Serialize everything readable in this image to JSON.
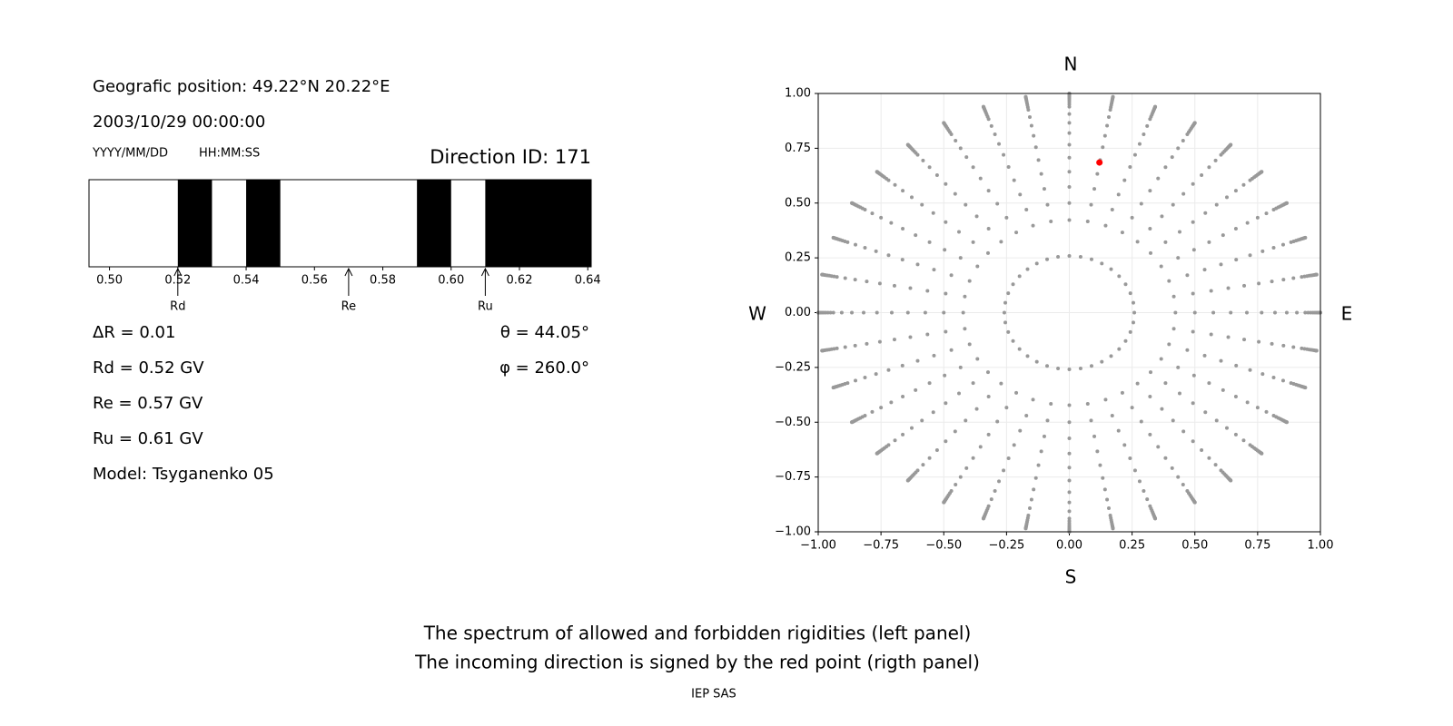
{
  "panel_text": {
    "position": "Geografic position: 49.22°N 20.22°E",
    "datetime": "2003/10/29 00:00:00",
    "date_format": "YYYY/MM/DD",
    "time_format": "HH:MM:SS",
    "direction": "Direction ID: 171",
    "delta_r": "ΔR = 0.01",
    "rd": "Rd = 0.52 GV",
    "re": "Re = 0.57 GV",
    "ru": "Ru = 0.61 GV",
    "model": "Model: Tsyganenko 05",
    "theta": "θ = 44.05°",
    "phi": "φ = 260.0°"
  },
  "chart_data": [
    {
      "type": "spectrum",
      "xlim": [
        0.494,
        0.641
      ],
      "xticks": [
        {
          "value": 0.5,
          "label": "0.50"
        },
        0.52,
        0.54,
        0.56,
        0.58,
        {
          "value": 0.6,
          "label": "0.60"
        },
        0.62,
        0.64
      ],
      "forbidden": [
        [
          0.52,
          0.53
        ],
        [
          0.54,
          0.55
        ],
        [
          0.59,
          0.6
        ],
        [
          0.61,
          0.641
        ]
      ],
      "color": "#000000",
      "markers": [
        {
          "label": "Rd",
          "value": 0.52
        },
        {
          "label": "Re",
          "value": 0.57
        },
        {
          "label": "Ru",
          "value": 0.61
        }
      ]
    },
    {
      "type": "polar-scatter",
      "xlim": [
        -1,
        1
      ],
      "ylim": [
        -1,
        1
      ],
      "xticks": [
        {
          "value": -1,
          "label": "−1.00"
        },
        {
          "value": -0.75,
          "label": "−0.75"
        },
        {
          "value": -0.5,
          "label": "−0.50"
        },
        {
          "value": -0.25,
          "label": "−0.25"
        },
        {
          "value": 0,
          "label": "0.00"
        },
        {
          "value": 0.25,
          "label": "0.25"
        },
        {
          "value": 0.5,
          "label": "0.50"
        },
        {
          "value": 0.75,
          "label": "0.75"
        },
        {
          "value": 1,
          "label": "1.00"
        }
      ],
      "yticks": [
        {
          "value": -1,
          "label": "−1.00"
        },
        {
          "value": -0.75,
          "label": "−0.75"
        },
        {
          "value": -0.5,
          "label": "−0.50"
        },
        {
          "value": -0.25,
          "label": "−0.25"
        },
        {
          "value": 0,
          "label": "0.00"
        },
        {
          "value": 0.25,
          "label": "0.25"
        },
        {
          "value": 0.5,
          "label": "0.50"
        },
        {
          "value": 0.75,
          "label": "0.75"
        },
        {
          "value": 1,
          "label": "1.00"
        }
      ],
      "grid": true,
      "north": "N",
      "south": "S",
      "west": "W",
      "east": "E",
      "directions": {
        "color": "#999999",
        "zenith_deg": [
          15,
          25,
          30,
          35,
          40,
          45,
          50,
          55,
          60,
          65,
          70,
          72,
          74,
          76,
          78,
          80,
          82,
          84,
          86,
          88,
          90
        ],
        "azimuth_deg": [
          0,
          10,
          20,
          30,
          40,
          50,
          60,
          70,
          80,
          90,
          100,
          110,
          120,
          130,
          140,
          150,
          160,
          170,
          180,
          190,
          200,
          210,
          220,
          230,
          240,
          250,
          260,
          270,
          280,
          290,
          300,
          310,
          320,
          330,
          340,
          350
        ]
      },
      "highlight": {
        "x": 0.12,
        "y": 0.685,
        "color": "#ff0000"
      }
    }
  ],
  "caption": {
    "line1": "The spectrum of allowed and forbidden rigidities (left panel)",
    "line2": "The incoming direction is signed by the red point (rigth panel)",
    "credit": "IEP SAS"
  }
}
